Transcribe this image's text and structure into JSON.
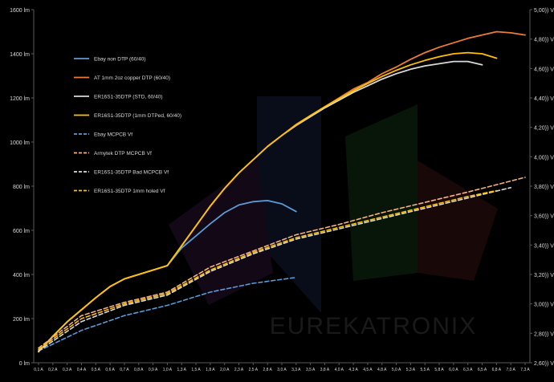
{
  "chart_data": {
    "type": "line",
    "title": "",
    "xlabel": "",
    "ylabel": "",
    "y2label": "",
    "grid": false,
    "legend_position": "top-left",
    "watermark": "EUREKATRONIX",
    "x_ticks": [
      "0,1 A",
      "0,2 A",
      "0,3 A",
      "0,4 A",
      "0,5 A",
      "0,6 A",
      "0,7 A",
      "0,8 A",
      "0,9 A",
      "1,0 A",
      "1,3 A",
      "1,5 A",
      "1,8 A",
      "2,0 A",
      "2,3 A",
      "2,5 A",
      "2,8 A",
      "3,0 A",
      "3,3 A",
      "3,5 A",
      "3,8 A",
      "4,0 A",
      "4,3 A",
      "4,5 A",
      "4,8 A",
      "5,0 A",
      "5,3 A",
      "5,5 A",
      "5,8 A",
      "6,0 A",
      "6,3 A",
      "6,5 A",
      "6,8 A",
      "7,0 A",
      "7,3 A"
    ],
    "y_left": {
      "ticks": [
        "0 lm",
        "200 lm",
        "400 lm",
        "600 lm",
        "800 lm",
        "1000 lm",
        "1200 lm",
        "1400 lm",
        "1600 lm"
      ],
      "ylim": [
        0,
        1600
      ]
    },
    "y_right": {
      "ticks": [
        "2,60)) V",
        "2,80)) V",
        "3,00)) V",
        "3,20)) V",
        "3,40)) V",
        "3,60)) V",
        "3,80)) V",
        "4,00)) V",
        "4,20)) V",
        "4,40)) V",
        "4,60)) V",
        "4,80)) V",
        "5,00)) V"
      ],
      "ylim": [
        2.6,
        5.0
      ]
    },
    "series": [
      {
        "name": "Ebay non DTP (60/40)",
        "color": "#5b9bd5",
        "dash": false,
        "axis": "left",
        "x": [
          0,
          1,
          2,
          3,
          4,
          5,
          6,
          7,
          8,
          9,
          10,
          11,
          12,
          13,
          14,
          15,
          16,
          17,
          18
        ],
        "values": [
          50,
          120,
          185,
          240,
          295,
          345,
          380,
          400,
          420,
          440,
          520,
          575,
          630,
          680,
          715,
          730,
          735,
          720,
          685
        ]
      },
      {
        "name": "AT 1mm 2oz copper DTP (60/40)",
        "color": "#ed7d31",
        "dash": false,
        "axis": "left",
        "x": [
          0,
          1,
          2,
          3,
          4,
          5,
          6,
          7,
          8,
          9,
          10,
          11,
          12,
          13,
          14,
          15,
          16,
          17,
          18,
          19,
          20,
          21,
          22,
          23,
          24,
          25,
          26,
          27,
          28,
          29,
          30,
          31,
          32,
          33,
          34
        ],
        "values": [
          50,
          120,
          185,
          240,
          295,
          345,
          380,
          400,
          420,
          440,
          530,
          620,
          710,
          790,
          860,
          920,
          980,
          1030,
          1080,
          1120,
          1160,
          1200,
          1240,
          1270,
          1310,
          1340,
          1375,
          1405,
          1430,
          1450,
          1470,
          1485,
          1500,
          1495,
          1485
        ]
      },
      {
        "name": "ER16S1-35DTP (STD, 60/40)",
        "color": "#d9d9d9",
        "dash": false,
        "axis": "left",
        "x": [
          0,
          1,
          2,
          3,
          4,
          5,
          6,
          7,
          8,
          9,
          10,
          11,
          12,
          13,
          14,
          15,
          16,
          17,
          18,
          19,
          20,
          21,
          22,
          23,
          24,
          25,
          26,
          27,
          28,
          29,
          30,
          31
        ],
        "values": [
          50,
          120,
          185,
          240,
          295,
          345,
          380,
          400,
          420,
          440,
          530,
          620,
          710,
          790,
          860,
          920,
          980,
          1030,
          1075,
          1115,
          1155,
          1190,
          1225,
          1255,
          1285,
          1310,
          1330,
          1345,
          1355,
          1365,
          1365,
          1350
        ]
      },
      {
        "name": "ER16S1-35DTP (1mm DTPed, 60/40)",
        "color": "#ffc000",
        "dash": false,
        "axis": "left",
        "x": [
          0,
          1,
          2,
          3,
          4,
          5,
          6,
          7,
          8,
          9,
          10,
          11,
          12,
          13,
          14,
          15,
          16,
          17,
          18,
          19,
          20,
          21,
          22,
          23,
          24,
          25,
          26,
          27,
          28,
          29,
          30,
          31,
          32
        ],
        "values": [
          50,
          120,
          185,
          240,
          295,
          345,
          380,
          400,
          420,
          440,
          530,
          620,
          710,
          790,
          860,
          920,
          980,
          1030,
          1078,
          1120,
          1160,
          1196,
          1232,
          1265,
          1297,
          1325,
          1350,
          1370,
          1387,
          1400,
          1405,
          1400,
          1380
        ]
      },
      {
        "name": "Ebay MCPCB Vf",
        "color": "#5b9bd5",
        "dash": true,
        "axis": "right",
        "x": [
          0,
          3,
          6,
          9,
          12,
          15,
          18
        ],
        "values": [
          2.68,
          2.82,
          2.92,
          2.99,
          3.08,
          3.14,
          3.18
        ]
      },
      {
        "name": "Armytek DTP MCPCB Vf",
        "color": "#f4b183",
        "dash": true,
        "axis": "right",
        "x": [
          0,
          3,
          6,
          9,
          12,
          15,
          18,
          21,
          24,
          27,
          30,
          34
        ],
        "values": [
          2.7,
          2.92,
          3.01,
          3.08,
          3.25,
          3.36,
          3.47,
          3.54,
          3.62,
          3.69,
          3.76,
          3.86
        ]
      },
      {
        "name": "ER16S1-35DTP Bad MCPCB Vf",
        "color": "#d9d9d9",
        "dash": true,
        "axis": "right",
        "x": [
          0,
          3,
          6,
          9,
          12,
          15,
          18,
          21,
          24,
          27,
          30,
          33
        ],
        "values": [
          2.68,
          2.88,
          2.99,
          3.06,
          3.22,
          3.34,
          3.44,
          3.51,
          3.58,
          3.65,
          3.72,
          3.79
        ]
      },
      {
        "name": "ER16S1-35DTP 1mm holed Vf",
        "color": "#ffc000",
        "dash": true,
        "axis": "right",
        "x": [
          0,
          3,
          6,
          9,
          12,
          15,
          18,
          21,
          24,
          27,
          30,
          32
        ],
        "values": [
          2.69,
          2.9,
          3.0,
          3.07,
          3.23,
          3.35,
          3.45,
          3.52,
          3.59,
          3.66,
          3.73,
          3.77
        ]
      }
    ]
  }
}
